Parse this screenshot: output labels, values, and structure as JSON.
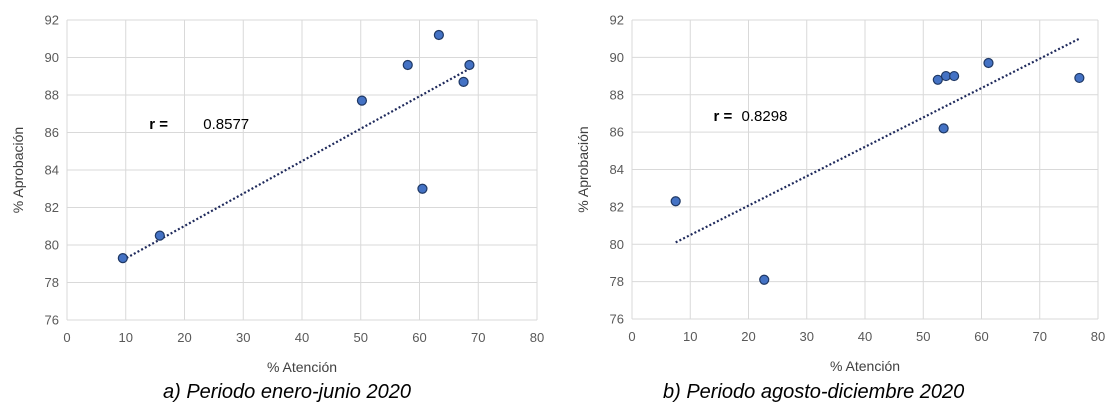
{
  "colors": {
    "grid": "#d9d9d9",
    "point_fill": "#4472c4",
    "point_stroke": "#1f3864",
    "trendline": "#1f2a5c"
  },
  "chart_data": [
    {
      "type": "scatter",
      "xlabel": "% Atención",
      "ylabel": "% Aprobación",
      "xlim": [
        0,
        80
      ],
      "ylim": [
        76,
        92
      ],
      "x_ticks": [
        "0",
        "10",
        "20",
        "30",
        "40",
        "50",
        "60",
        "70",
        "80"
      ],
      "y_ticks": [
        "76",
        "78",
        "80",
        "82",
        "84",
        "86",
        "88",
        "90",
        "92"
      ],
      "grid": true,
      "points": [
        {
          "x": 9.5,
          "y": 79.3
        },
        {
          "x": 15.8,
          "y": 80.5
        },
        {
          "x": 50.2,
          "y": 87.7
        },
        {
          "x": 58.0,
          "y": 89.6
        },
        {
          "x": 60.5,
          "y": 83.0
        },
        {
          "x": 63.3,
          "y": 91.2
        },
        {
          "x": 67.5,
          "y": 88.7
        },
        {
          "x": 68.5,
          "y": 89.6
        }
      ],
      "trendline": {
        "x_start": 9.5,
        "y_start": 79.2,
        "x_end": 68.5,
        "y_end": 89.4
      },
      "annotation": {
        "prefix": "r =",
        "value": "0.8577"
      },
      "caption": "a) Periodo enero-junio 2020"
    },
    {
      "type": "scatter",
      "xlabel": "% Atención",
      "ylabel": "% Aprobación",
      "xlim": [
        0,
        80
      ],
      "ylim": [
        76,
        92
      ],
      "x_ticks": [
        "0",
        "10",
        "20",
        "30",
        "40",
        "50",
        "60",
        "70",
        "80"
      ],
      "y_ticks": [
        "76",
        "78",
        "80",
        "82",
        "84",
        "86",
        "88",
        "90",
        "92"
      ],
      "grid": true,
      "points": [
        {
          "x": 7.5,
          "y": 82.3
        },
        {
          "x": 22.7,
          "y": 78.1
        },
        {
          "x": 52.5,
          "y": 88.8
        },
        {
          "x": 53.5,
          "y": 86.2
        },
        {
          "x": 53.9,
          "y": 89.0
        },
        {
          "x": 55.3,
          "y": 89.0
        },
        {
          "x": 61.2,
          "y": 89.7
        },
        {
          "x": 76.8,
          "y": 88.9
        }
      ],
      "trendline": {
        "x_start": 7.5,
        "y_start": 80.1,
        "x_end": 76.8,
        "y_end": 91.0
      },
      "annotation": {
        "prefix": "r =",
        "value": "0.8298"
      },
      "caption": "b) Periodo agosto-diciembre 2020"
    }
  ]
}
